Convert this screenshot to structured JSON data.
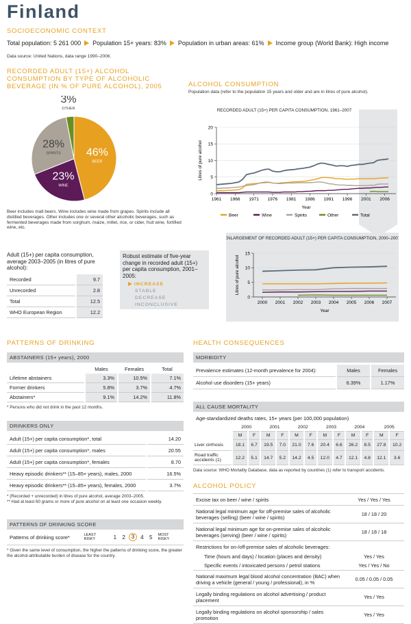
{
  "header": {
    "title": "Finland",
    "section": "SOCIOECONOMIC CONTEXT",
    "facts": [
      "Total population: 5 261 000",
      "Population 15+ years: 83%",
      "Population in urban areas: 61%",
      "Income group (World Bank): High income"
    ],
    "source": "Data source: United Nations, data range 1990–2006."
  },
  "chart_data": [
    {
      "type": "pie",
      "title": "RECORDED ADULT (15+) ALCOHOL CONSUMPTION BY TYPE OF ALCOHOLIC BEVERAGE (IN % OF PURE ALCOHOL), 2005",
      "categories": [
        "BEER",
        "WINE",
        "SPIRITS",
        "OTHER"
      ],
      "values": [
        46,
        23,
        28,
        3
      ],
      "value_labels": [
        "46%",
        "23%",
        "28%",
        "3%"
      ],
      "colors": [
        "#e8a020",
        "#5c1a57",
        "#aca398",
        "#6b8e23"
      ],
      "note": "Beer includes malt beers. Wine includes wine made from grapes. Spirits include all distilled beverages. Other includes one or several other alcoholic beverages, such as fermented beverages made from sorghum, maize, millet, rice, or cider, fruit wine, fortified wine, etc."
    },
    {
      "type": "line",
      "title": "RECORDED ADULT (15+) PER CAPITA CONSUMPTION, 1961–2007",
      "x_label": "Year",
      "y_label": "Litres of pure alcohol",
      "x": [
        1961,
        1962,
        1963,
        1964,
        1965,
        1966,
        1967,
        1968,
        1969,
        1970,
        1971,
        1972,
        1973,
        1974,
        1975,
        1976,
        1977,
        1978,
        1979,
        1980,
        1981,
        1982,
        1983,
        1984,
        1985,
        1986,
        1987,
        1988,
        1989,
        1990,
        1991,
        1992,
        1993,
        1994,
        1995,
        1996,
        1997,
        1998,
        1999,
        2000,
        2001,
        2002,
        2003,
        2004,
        2005,
        2006,
        2007
      ],
      "xlim": [
        1961,
        2009
      ],
      "xticks": [
        1961,
        1966,
        1971,
        1976,
        1981,
        1986,
        1991,
        1996,
        2001,
        2006
      ],
      "ylim": [
        0,
        20
      ],
      "yticks": [
        0,
        5,
        10,
        15,
        20
      ],
      "grid": true,
      "legend": "bottom",
      "series": [
        {
          "name": "Beer",
          "color": "#e8a020",
          "values": [
            0.8,
            0.9,
            0.9,
            1.0,
            1.0,
            1.1,
            1.2,
            1.7,
            2.8,
            2.9,
            3.0,
            3.1,
            3.2,
            3.3,
            3.4,
            3.2,
            3.1,
            3.2,
            3.3,
            3.4,
            3.5,
            3.6,
            3.6,
            3.7,
            3.8,
            4.0,
            4.2,
            4.5,
            4.8,
            4.9,
            4.8,
            4.7,
            4.5,
            4.5,
            4.4,
            4.3,
            4.4,
            4.4,
            4.5,
            4.5,
            4.5,
            4.5,
            4.5,
            4.6,
            4.7,
            4.7,
            4.8
          ]
        },
        {
          "name": "Wine",
          "color": "#5c1a57",
          "values": [
            0.3,
            0.3,
            0.3,
            0.3,
            0.3,
            0.3,
            0.3,
            0.4,
            0.5,
            0.5,
            0.5,
            0.5,
            0.5,
            0.5,
            0.5,
            0.4,
            0.4,
            0.4,
            0.5,
            0.5,
            0.5,
            0.5,
            0.6,
            0.6,
            0.7,
            0.7,
            0.8,
            0.9,
            0.9,
            0.9,
            1.0,
            1.0,
            1.1,
            1.2,
            1.3,
            1.3,
            1.4,
            1.5,
            1.6,
            1.6,
            1.7,
            1.7,
            1.8,
            1.9,
            1.9,
            2.0,
            2.0
          ]
        },
        {
          "name": "Spirits",
          "color": "#aca398",
          "values": [
            1.6,
            1.6,
            1.7,
            1.7,
            1.8,
            1.9,
            2.0,
            2.2,
            2.4,
            2.6,
            2.7,
            3.0,
            3.3,
            3.5,
            3.5,
            3.2,
            3.1,
            3.0,
            3.1,
            3.2,
            3.2,
            3.2,
            3.3,
            3.3,
            3.3,
            3.3,
            3.4,
            3.5,
            3.5,
            3.3,
            3.0,
            2.9,
            2.7,
            2.6,
            2.6,
            2.5,
            2.5,
            2.4,
            2.4,
            2.4,
            2.4,
            2.5,
            2.5,
            2.8,
            2.9,
            2.9,
            2.9
          ]
        },
        {
          "name": "Other",
          "color": "#6b8e23",
          "values": [
            null,
            null,
            null,
            null,
            null,
            null,
            null,
            null,
            null,
            null,
            null,
            null,
            null,
            null,
            null,
            null,
            null,
            null,
            null,
            null,
            null,
            null,
            null,
            null,
            null,
            null,
            null,
            null,
            null,
            null,
            null,
            null,
            null,
            null,
            null,
            null,
            null,
            null,
            null,
            null,
            null,
            0.6,
            0.7,
            0.6,
            0.6,
            0.6,
            0.6
          ]
        },
        {
          "name": "Total",
          "color": "#5b6b79",
          "values": [
            2.7,
            2.8,
            2.9,
            3.0,
            3.1,
            3.3,
            3.5,
            4.3,
            5.7,
            6.0,
            6.2,
            6.6,
            7.0,
            7.3,
            7.4,
            6.8,
            6.6,
            6.6,
            6.9,
            7.1,
            7.2,
            7.3,
            7.5,
            7.6,
            7.8,
            8.0,
            8.4,
            8.9,
            9.2,
            9.1,
            8.8,
            8.6,
            8.3,
            8.4,
            8.4,
            8.2,
            8.5,
            8.6,
            8.8,
            8.8,
            9.0,
            9.2,
            9.3,
            10.0,
            10.2,
            10.3,
            10.5
          ]
        }
      ]
    },
    {
      "type": "line",
      "title": "ENLARGEMENT OF RECORDED ADULT (15+) PER CAPITA CONSUMPTION, 2000–2007",
      "x_label": "Year",
      "y_label": "Litres of pure alcohol",
      "x": [
        2000,
        2001,
        2002,
        2003,
        2004,
        2005,
        2006,
        2007
      ],
      "xlim": [
        1999.5,
        2007.5
      ],
      "xticks": [
        2000,
        2001,
        2002,
        2003,
        2004,
        2005,
        2006,
        2007
      ],
      "ylim": [
        0,
        15
      ],
      "yticks": [
        0,
        5,
        10,
        15
      ],
      "grid": true,
      "series": [
        {
          "color": "#e8a020",
          "values": [
            4.5,
            4.5,
            4.5,
            4.5,
            4.6,
            4.7,
            4.7,
            4.8
          ]
        },
        {
          "color": "#5c1a57",
          "values": [
            1.6,
            1.7,
            1.7,
            1.8,
            1.9,
            1.9,
            2.0,
            2.0
          ]
        },
        {
          "color": "#aca398",
          "values": [
            2.4,
            2.4,
            2.5,
            2.5,
            2.8,
            2.9,
            2.9,
            2.9
          ]
        },
        {
          "color": "#6b8e23",
          "values": [
            null,
            null,
            0.6,
            0.7,
            0.6,
            0.6,
            0.6,
            0.6
          ]
        },
        {
          "color": "#5b6b79",
          "values": [
            8.8,
            9.0,
            9.2,
            9.3,
            10.0,
            10.2,
            10.3,
            10.5
          ]
        }
      ]
    }
  ],
  "consumption": {
    "title": "ALCOHOL CONSUMPTION",
    "subtitle": "Population data (refer to the population 15 years and older and are in litres of pure alcohol)."
  },
  "adult_consumption": {
    "title": "Adult (15+) per capita consumption, average 2003–2005 (in litres of pure alcohol):",
    "rows": [
      [
        "Recorded",
        "9.7"
      ],
      [
        "Unrecorded",
        "2.8"
      ],
      [
        "Total",
        "12.5"
      ],
      [
        "WHO European Region",
        "12.2"
      ]
    ]
  },
  "trend": {
    "title": "Robust estimate of five-year change in recorded adult (15+) per capita consumption, 2001–2005:",
    "options": [
      "INCREASE",
      "STABLE",
      "DECREASE",
      "INCONCLUSIVE"
    ],
    "selected": "INCREASE"
  },
  "patterns": {
    "title": "PATTERNS OF DRINKING",
    "abstainers": {
      "title": "ABSTAINERS (15+ years), 2000",
      "header": [
        "Males",
        "Females",
        "Total"
      ],
      "rows": [
        [
          "Lifetime abstainers",
          "3.3%",
          "10.5%",
          "7.1%"
        ],
        [
          "Former drinkers",
          "5.8%",
          "3.7%",
          "4.7%"
        ],
        [
          "Abstainers*",
          "9.1%",
          "14.2%",
          "11.8%"
        ]
      ],
      "footnote": "*  Persons who did not drink in the past 12 months."
    },
    "drinkers": {
      "title": "DRINKERS ONLY",
      "rows": [
        [
          "Adult (15+) per capita consumption*, total",
          "14.20"
        ],
        [
          "Adult (15+) per capita consumption*, males",
          "20.55"
        ],
        [
          "Adult (15+) per capita consumption*, females",
          "8.70"
        ],
        [
          "Heavy episodic drinkers** (15–85+ years), males, 2000",
          "16.5%"
        ],
        [
          "Heavy episodic drinkers** (15–85+ years), females, 2000",
          "3.7%"
        ]
      ],
      "footnotes": [
        "*  (Recorded + unrecorded) in litres of pure alcohol, average 2003–2005.",
        "** Had at least 60 grams or more of pure alcohol on at least one occasion weekly."
      ]
    },
    "score": {
      "title": "PATTERNS OF DRINKING SCORE",
      "label": "Patterns of drinking score*",
      "low": "LEAST RISKY",
      "high": "MOST RISKY",
      "levels": [
        1,
        2,
        3,
        4,
        5
      ],
      "selected": 3,
      "footnote": "*  Given the same level of consumption, the higher the patterns of drinking score, the greater the alcohol-attributable burden of disease for the country."
    }
  },
  "health": {
    "title": "HEALTH CONSEQUENCES",
    "morbidity": {
      "title": "MORBIDITY",
      "label": "Prevalence estimates (12-month prevalence for 2004):",
      "header": [
        "Males",
        "Females"
      ],
      "rows": [
        [
          "Alcohol use disorders (15+ years)",
          "6.39%",
          "1.17%"
        ]
      ]
    },
    "mortality": {
      "title": "ALL CAUSE MORTALITY",
      "subtitle": "Age-standardized deaths rates, 15+ years (per 100,000 population)",
      "years": [
        "2000",
        "2001",
        "2002",
        "2003",
        "2004",
        "2005"
      ],
      "sexes": [
        "M",
        "F"
      ],
      "rows": [
        [
          "Liver cirrhosis",
          "18.1",
          "6.7",
          "19.5",
          "7.0",
          "21.0",
          "7.6",
          "20.4",
          "6.6",
          "26.2",
          "8.5",
          "27.8",
          "10.2"
        ],
        [
          "Road traffic accidents (1)",
          "12.2",
          "5.1",
          "14.7",
          "5.2",
          "14.2",
          "4.5",
          "12.0",
          "4.7",
          "12.1",
          "4.8",
          "12.1",
          "3.6"
        ]
      ],
      "source": "Data source: WHO Mortality Database, data as reported by countries (1) refer to transport accidents."
    }
  },
  "policy": {
    "title": "ALCOHOL POLICY",
    "rows": [
      {
        "label": "Excise tax on beer / wine / spirits",
        "value": "Yes / Yes / Yes"
      },
      {
        "label": "National legal minimum age for off-premise sales of alcoholic beverages (selling) (beer / wine / spirits)",
        "value": "18 / 18 / 20"
      },
      {
        "label": "National legal minimum age for on-premise sales of alcoholic beverages (serving) (beer / wine / spirits)",
        "value": "18 / 18 / 18"
      },
      {
        "label": "Restrictions for on-/off-premise sales of alcoholic beverages:",
        "items": [
          {
            "label": "Time (hours and days) / location (places and density)",
            "value": "Yes / Yes"
          },
          {
            "label": "Specific events / intoxicated persons / petrol stations",
            "value": "Yes / Yes / No"
          }
        ]
      },
      {
        "label": "National maximum legal blood alcohol concentration (BAC) when driving a vehicle (general / young / professional), in %",
        "value": "0.05 / 0.05 / 0.05"
      },
      {
        "label": "Legally binding regulations on alcohol advertising / product placement",
        "value": "Yes / Yes"
      },
      {
        "label": "Legally binding regulations on alcohol sponsorship / sales promotion",
        "value": "Yes / Yes"
      }
    ]
  }
}
